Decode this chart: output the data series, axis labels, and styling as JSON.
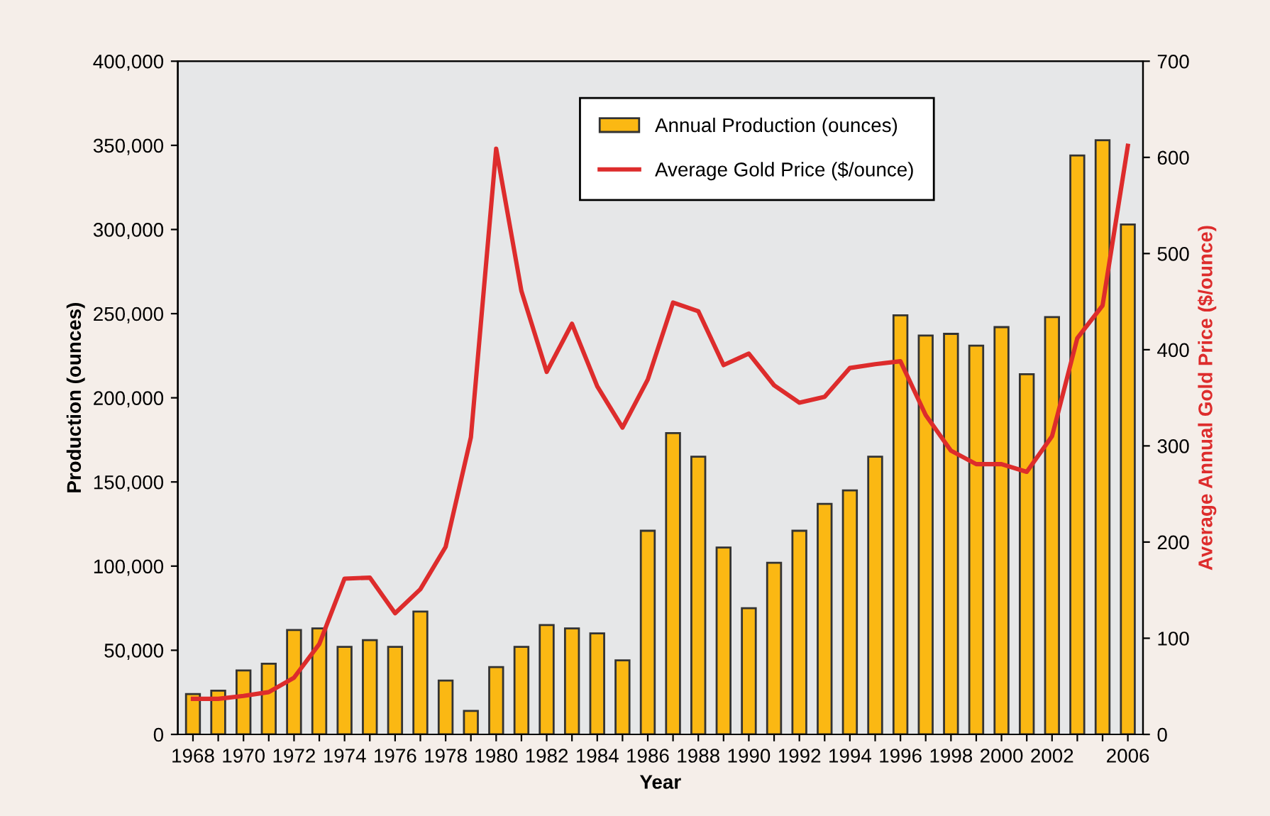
{
  "chart_data": {
    "type": "bar",
    "xlabel": "Year",
    "ylabel": "Production (ounces)",
    "y2label": "Average Annual Gold Price ($/ounce)",
    "categories": [
      "1968",
      null,
      "1970",
      null,
      "1972",
      null,
      "1974",
      null,
      "1976",
      null,
      "1978",
      null,
      "1980",
      null,
      "1982",
      null,
      "1984",
      null,
      "1986",
      null,
      "1988",
      null,
      "1990",
      null,
      "1992",
      null,
      "1994",
      null,
      "1996",
      null,
      "1998",
      null,
      "2000",
      null,
      "2002",
      null,
      null,
      "2006"
    ],
    "series": [
      {
        "name": "Annual Production (ounces)",
        "color": "#fbb813",
        "values": [
          24000,
          26000,
          38000,
          42000,
          62000,
          63000,
          52000,
          56000,
          52000,
          73000,
          32000,
          14000,
          40000,
          52000,
          65000,
          63000,
          60000,
          44000,
          121000,
          179000,
          165000,
          111000,
          75000,
          102000,
          121000,
          137000,
          145000,
          165000,
          249000,
          237000,
          238000,
          231000,
          242000,
          214000,
          248000,
          344000,
          353000,
          303000
        ]
      },
      {
        "name": "Average Gold Price ($/ounce)",
        "type": "line",
        "axis": "y2",
        "color": "#dd2c2c",
        "values": [
          37,
          37,
          40,
          44,
          59,
          94,
          162,
          163,
          126,
          151,
          195,
          309,
          609,
          461,
          377,
          427,
          362,
          319,
          369,
          449,
          440,
          384,
          396,
          363,
          345,
          351,
          381,
          385,
          388,
          332,
          295,
          281,
          281,
          273,
          310,
          412,
          446,
          612
        ]
      }
    ],
    "ylim": [
      0,
      400000
    ],
    "yticks": [
      {
        "value": 0,
        "label": "0"
      },
      {
        "value": 50000,
        "label": "50,000"
      },
      {
        "value": 100000,
        "label": "100,000"
      },
      {
        "value": 150000,
        "label": "150,000"
      },
      {
        "value": 200000,
        "label": "200,000"
      },
      {
        "value": 250000,
        "label": "250,000"
      },
      {
        "value": 300000,
        "label": "300,000"
      },
      {
        "value": 350000,
        "label": "350,000"
      },
      {
        "value": 400000,
        "label": "400,000"
      }
    ],
    "y2lim": [
      0,
      700
    ],
    "y2ticks": [
      0,
      100,
      200,
      300,
      400,
      500,
      600,
      700
    ],
    "legend": "top",
    "grid": false
  }
}
